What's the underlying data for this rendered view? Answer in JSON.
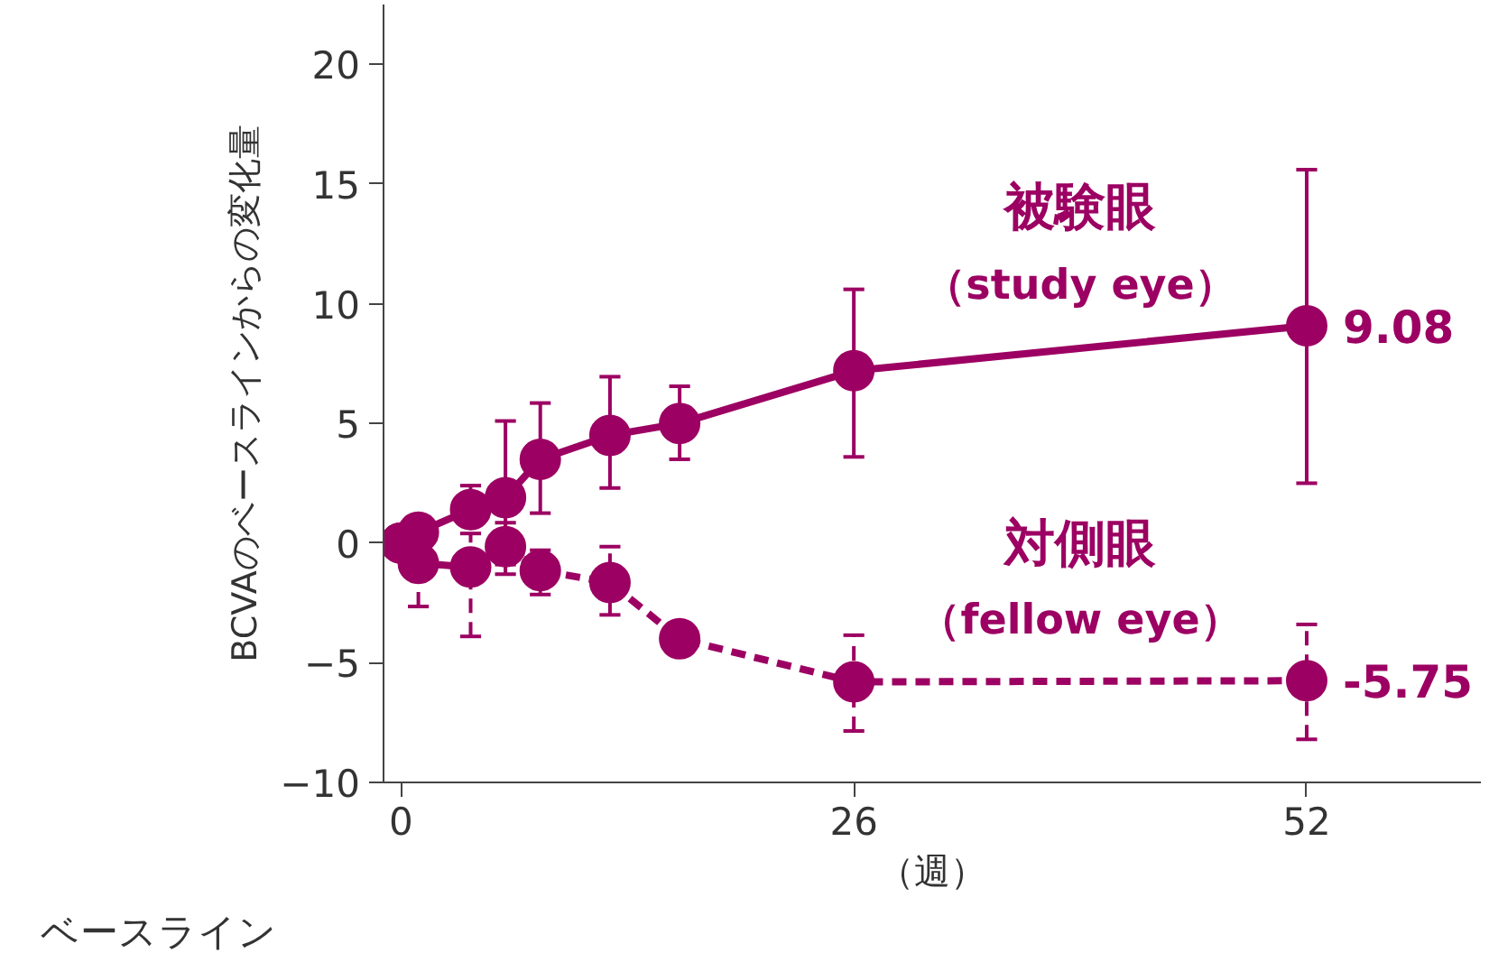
{
  "chart_data": {
    "type": "line",
    "ylabel": "BCVAのベースラインからの変化量",
    "xlabel": "（週）",
    "annotations": [
      "ベースライン"
    ],
    "xlim": [
      -1,
      62
    ],
    "xticks": [
      0,
      26,
      52
    ],
    "ylim": [
      -10,
      22.5
    ],
    "yticks": [
      -10,
      -5,
      0,
      5,
      10,
      15,
      20
    ],
    "grid": false,
    "marker": "circle",
    "series": [
      {
        "name": "被験眼（study eye）",
        "color": "#9c0062",
        "line_style": "solid",
        "x": [
          0,
          1,
          4,
          6,
          8,
          12,
          16,
          26,
          52
        ],
        "values": [
          0,
          0.45,
          1.4,
          1.9,
          3.5,
          4.5,
          5.0,
          7.2,
          9.08
        ],
        "errors": [
          null,
          null,
          [
            1.4,
            2.4
          ],
          [
            -0.9,
            5.1
          ],
          [
            1.25,
            5.85
          ],
          [
            2.3,
            6.95
          ],
          [
            3.5,
            6.55
          ],
          [
            3.6,
            10.6
          ],
          [
            2.5,
            15.6
          ]
        ],
        "value_labels": [
          null,
          null,
          null,
          null,
          null,
          null,
          null,
          null,
          "9.08"
        ]
      },
      {
        "name": "対側眼（fellow eye）",
        "color": "#9c0062",
        "line_style": "dashed",
        "x": [
          0,
          1,
          4,
          6,
          8,
          12,
          16,
          26,
          52
        ],
        "values": [
          0,
          -0.85,
          -1.0,
          -0.15,
          -1.15,
          -1.65,
          -4.0,
          -5.8,
          -5.75
        ],
        "errors": [
          null,
          [
            -2.65,
            -0.85
          ],
          [
            -3.9,
            0.4
          ],
          [
            -1.3,
            0.85
          ],
          [
            -2.15,
            -0.3
          ],
          [
            -3.0,
            -0.15
          ],
          null,
          [
            -7.85,
            -3.85
          ],
          [
            -8.2,
            -3.4
          ]
        ],
        "value_labels": [
          null,
          null,
          null,
          null,
          null,
          null,
          null,
          null,
          "-5.75"
        ]
      }
    ]
  }
}
